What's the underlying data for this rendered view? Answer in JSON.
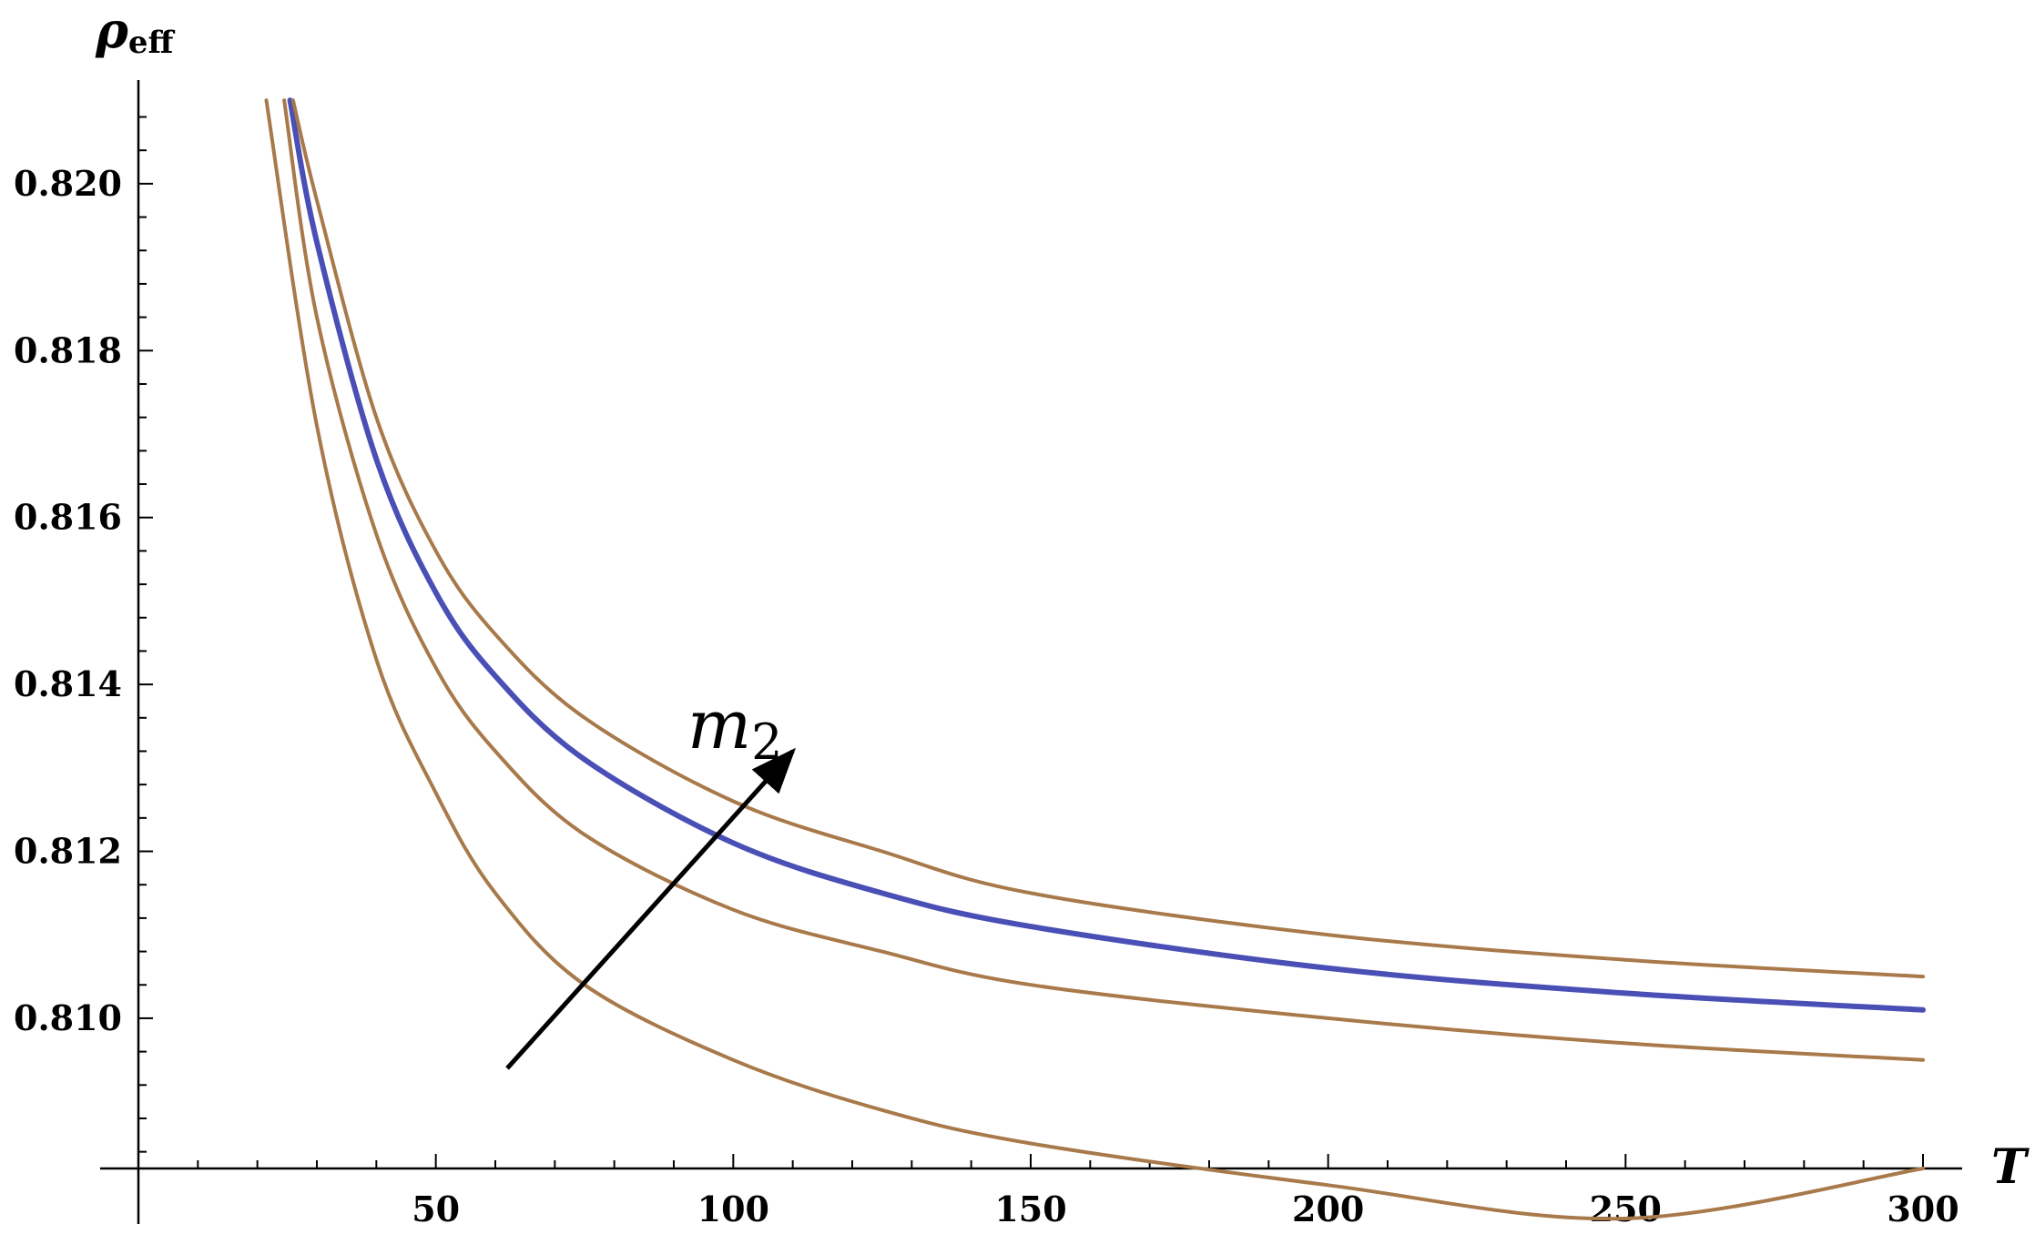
{
  "chart_data": {
    "type": "line",
    "title": "",
    "xlabel": "T",
    "ylabel_main": "ρ",
    "ylabel_sub": "eff",
    "xlim": [
      0,
      300
    ],
    "ylim": [
      0.8082,
      0.8211
    ],
    "x_ticks": [
      {
        "value": 50,
        "label": "50"
      },
      {
        "value": 100,
        "label": "100"
      },
      {
        "value": 150,
        "label": "150"
      },
      {
        "value": 200,
        "label": "200"
      },
      {
        "value": 250,
        "label": "250"
      },
      {
        "value": 300,
        "label": "300"
      }
    ],
    "y_ticks": [
      {
        "value": 0.81,
        "label": "0.810"
      },
      {
        "value": 0.812,
        "label": "0.812"
      },
      {
        "value": 0.814,
        "label": "0.814"
      },
      {
        "value": 0.816,
        "label": "0.816"
      },
      {
        "value": 0.818,
        "label": "0.818"
      },
      {
        "value": 0.82,
        "label": "0.820"
      }
    ],
    "grid": false,
    "annotation": {
      "text_main": "m",
      "text_sub": "2",
      "arrow_from": [
        62,
        0.8094
      ],
      "arrow_to": [
        110,
        0.8132
      ]
    },
    "series": [
      {
        "color": "#a8794a",
        "x": [
          21.5,
          30,
          40,
          50,
          60,
          75,
          100,
          125,
          150,
          200,
          250,
          300
        ],
        "y": [
          0.821,
          0.8171,
          0.8143,
          0.8127,
          0.8115,
          0.8104,
          0.8095,
          0.8089,
          0.8085,
          0.808,
          0.8076,
          0.8082
        ]
      },
      {
        "color": "#a8794a",
        "x": [
          24.5,
          30,
          40,
          50,
          60,
          75,
          100,
          125,
          150,
          200,
          250,
          300
        ],
        "y": [
          0.821,
          0.8184,
          0.8158,
          0.8142,
          0.8132,
          0.8122,
          0.8113,
          0.8108,
          0.8104,
          0.81,
          0.8097,
          0.8095
        ]
      },
      {
        "color": "#4a4fb5",
        "x": [
          25.5,
          30,
          40,
          50,
          60,
          75,
          100,
          125,
          150,
          200,
          250,
          300
        ],
        "y": [
          0.821,
          0.8193,
          0.8167,
          0.8151,
          0.8141,
          0.8131,
          0.8121,
          0.8115,
          0.8111,
          0.8106,
          0.8103,
          0.8101
        ]
      },
      {
        "color": "#a8794a",
        "x": [
          26,
          30,
          40,
          50,
          60,
          75,
          100,
          125,
          150,
          200,
          250,
          300
        ],
        "y": [
          0.821,
          0.8198,
          0.8172,
          0.8156,
          0.8146,
          0.8136,
          0.8126,
          0.812,
          0.8115,
          0.811,
          0.8107,
          0.8105
        ]
      }
    ]
  }
}
